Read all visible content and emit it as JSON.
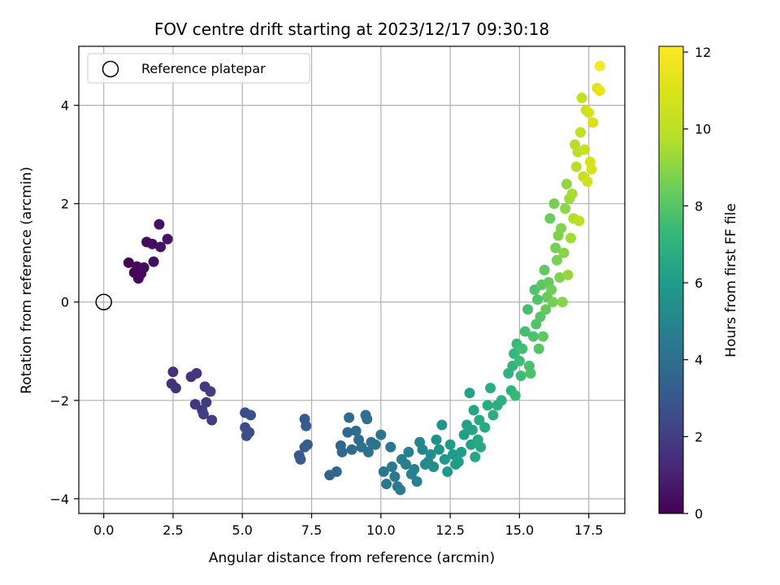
{
  "chart_data": {
    "type": "scatter",
    "title": "FOV centre drift starting at 2023/12/17 09:30:18",
    "xlabel": "Angular distance from reference (arcmin)",
    "ylabel": "Rotation from reference (arcmin)",
    "xlim": [
      -0.9,
      18.8
    ],
    "ylim": [
      -4.3,
      5.2
    ],
    "xticks": [
      0.0,
      2.5,
      5.0,
      7.5,
      10.0,
      12.5,
      15.0,
      17.5
    ],
    "xtick_labels": [
      "0.0",
      "2.5",
      "5.0",
      "7.5",
      "10.0",
      "12.5",
      "15.0",
      "17.5"
    ],
    "yticks": [
      -4,
      -2,
      0,
      2,
      4
    ],
    "ytick_labels": [
      "−4",
      "−2",
      "0",
      "2",
      "4"
    ],
    "grid": true,
    "colormap": "viridis",
    "colorbar": {
      "label": "Hours from first FF file",
      "range": [
        0,
        12.15
      ],
      "ticks": [
        0,
        2,
        4,
        6,
        8,
        10,
        12
      ],
      "tick_labels": [
        "0",
        "2",
        "4",
        "6",
        "8",
        "10",
        "12"
      ]
    },
    "legend": {
      "position": "top-left",
      "entries": [
        "Reference platepar"
      ]
    },
    "reference_point": {
      "x": 0.0,
      "y": 0.0
    },
    "points": [
      {
        "x": 0.9,
        "y": 0.8,
        "h": 0.05
      },
      {
        "x": 1.1,
        "y": 0.6,
        "h": 0.1
      },
      {
        "x": 1.2,
        "y": 0.72,
        "h": 0.15
      },
      {
        "x": 1.25,
        "y": 0.48,
        "h": 0.2
      },
      {
        "x": 1.35,
        "y": 0.58,
        "h": 0.25
      },
      {
        "x": 1.45,
        "y": 0.7,
        "h": 0.3
      },
      {
        "x": 1.55,
        "y": 1.22,
        "h": 0.35
      },
      {
        "x": 1.75,
        "y": 1.18,
        "h": 0.4
      },
      {
        "x": 1.8,
        "y": 0.82,
        "h": 0.45
      },
      {
        "x": 2.0,
        "y": 1.58,
        "h": 0.5
      },
      {
        "x": 2.05,
        "y": 1.12,
        "h": 0.55
      },
      {
        "x": 2.3,
        "y": 1.28,
        "h": 0.6
      },
      {
        "x": 2.5,
        "y": -1.42,
        "h": 1.5
      },
      {
        "x": 2.45,
        "y": -1.66,
        "h": 1.55
      },
      {
        "x": 2.6,
        "y": -1.75,
        "h": 1.6
      },
      {
        "x": 3.15,
        "y": -1.52,
        "h": 1.65
      },
      {
        "x": 3.35,
        "y": -1.45,
        "h": 1.7
      },
      {
        "x": 3.3,
        "y": -2.08,
        "h": 1.75
      },
      {
        "x": 3.55,
        "y": -2.2,
        "h": 1.8
      },
      {
        "x": 3.65,
        "y": -1.72,
        "h": 1.85
      },
      {
        "x": 3.7,
        "y": -2.04,
        "h": 1.9
      },
      {
        "x": 3.85,
        "y": -1.82,
        "h": 1.95
      },
      {
        "x": 3.9,
        "y": -2.4,
        "h": 2.0
      },
      {
        "x": 3.6,
        "y": -2.28,
        "h": 2.05
      },
      {
        "x": 5.1,
        "y": -2.25,
        "h": 2.5
      },
      {
        "x": 5.1,
        "y": -2.55,
        "h": 2.55
      },
      {
        "x": 5.15,
        "y": -2.72,
        "h": 2.6
      },
      {
        "x": 5.25,
        "y": -2.65,
        "h": 2.65
      },
      {
        "x": 5.3,
        "y": -2.3,
        "h": 2.7
      },
      {
        "x": 7.05,
        "y": -3.12,
        "h": 3.0
      },
      {
        "x": 7.1,
        "y": -3.2,
        "h": 3.05
      },
      {
        "x": 7.25,
        "y": -2.38,
        "h": 3.1
      },
      {
        "x": 7.3,
        "y": -2.52,
        "h": 3.15
      },
      {
        "x": 7.35,
        "y": -2.9,
        "h": 3.2
      },
      {
        "x": 7.25,
        "y": -2.95,
        "h": 3.25
      },
      {
        "x": 8.15,
        "y": -3.52,
        "h": 3.5
      },
      {
        "x": 8.4,
        "y": -3.45,
        "h": 3.55
      },
      {
        "x": 8.55,
        "y": -2.92,
        "h": 3.6
      },
      {
        "x": 8.6,
        "y": -3.05,
        "h": 3.65
      },
      {
        "x": 8.8,
        "y": -2.65,
        "h": 3.7
      },
      {
        "x": 8.85,
        "y": -2.35,
        "h": 3.75
      },
      {
        "x": 8.95,
        "y": -3.0,
        "h": 3.8
      },
      {
        "x": 9.1,
        "y": -2.62,
        "h": 3.85
      },
      {
        "x": 9.2,
        "y": -2.8,
        "h": 3.9
      },
      {
        "x": 9.3,
        "y": -2.95,
        "h": 3.95
      },
      {
        "x": 9.45,
        "y": -2.3,
        "h": 4.0
      },
      {
        "x": 9.5,
        "y": -2.38,
        "h": 4.05
      },
      {
        "x": 9.55,
        "y": -3.05,
        "h": 4.1
      },
      {
        "x": 9.65,
        "y": -2.85,
        "h": 4.15
      },
      {
        "x": 9.8,
        "y": -2.9,
        "h": 4.2
      },
      {
        "x": 10.0,
        "y": -2.7,
        "h": 4.25
      },
      {
        "x": 10.1,
        "y": -3.45,
        "h": 4.3
      },
      {
        "x": 10.2,
        "y": -3.7,
        "h": 4.35
      },
      {
        "x": 10.35,
        "y": -2.95,
        "h": 4.4
      },
      {
        "x": 10.4,
        "y": -3.35,
        "h": 4.45
      },
      {
        "x": 10.5,
        "y": -3.55,
        "h": 4.5
      },
      {
        "x": 10.6,
        "y": -3.75,
        "h": 4.55
      },
      {
        "x": 10.7,
        "y": -3.82,
        "h": 4.6
      },
      {
        "x": 10.75,
        "y": -3.2,
        "h": 4.65
      },
      {
        "x": 10.9,
        "y": -3.3,
        "h": 4.7
      },
      {
        "x": 11.0,
        "y": -3.05,
        "h": 4.75
      },
      {
        "x": 11.1,
        "y": -3.5,
        "h": 4.8
      },
      {
        "x": 11.2,
        "y": -3.4,
        "h": 4.85
      },
      {
        "x": 11.3,
        "y": -3.65,
        "h": 4.9
      },
      {
        "x": 11.4,
        "y": -2.85,
        "h": 4.95
      },
      {
        "x": 11.5,
        "y": -3.0,
        "h": 5.0
      },
      {
        "x": 11.6,
        "y": -3.3,
        "h": 5.1
      },
      {
        "x": 11.7,
        "y": -3.25,
        "h": 5.2
      },
      {
        "x": 11.8,
        "y": -3.1,
        "h": 5.3
      },
      {
        "x": 11.9,
        "y": -3.35,
        "h": 5.4
      },
      {
        "x": 12.0,
        "y": -2.8,
        "h": 5.5
      },
      {
        "x": 12.1,
        "y": -3.0,
        "h": 5.6
      },
      {
        "x": 12.2,
        "y": -2.5,
        "h": 5.7
      },
      {
        "x": 12.3,
        "y": -3.2,
        "h": 5.8
      },
      {
        "x": 12.4,
        "y": -3.45,
        "h": 5.85
      },
      {
        "x": 12.5,
        "y": -2.9,
        "h": 5.9
      },
      {
        "x": 12.6,
        "y": -3.1,
        "h": 5.95
      },
      {
        "x": 12.7,
        "y": -3.3,
        "h": 6.0
      },
      {
        "x": 12.8,
        "y": -3.25,
        "h": 6.05
      },
      {
        "x": 12.9,
        "y": -3.05,
        "h": 6.1
      },
      {
        "x": 13.0,
        "y": -2.7,
        "h": 6.15
      },
      {
        "x": 13.1,
        "y": -2.5,
        "h": 6.2
      },
      {
        "x": 13.2,
        "y": -1.85,
        "h": 6.25
      },
      {
        "x": 13.25,
        "y": -2.9,
        "h": 6.3
      },
      {
        "x": 13.3,
        "y": -2.6,
        "h": 6.35
      },
      {
        "x": 13.35,
        "y": -2.2,
        "h": 6.4
      },
      {
        "x": 13.4,
        "y": -3.15,
        "h": 6.45
      },
      {
        "x": 13.5,
        "y": -2.8,
        "h": 6.5
      },
      {
        "x": 13.55,
        "y": -2.4,
        "h": 6.55
      },
      {
        "x": 13.6,
        "y": -2.95,
        "h": 6.6
      },
      {
        "x": 13.75,
        "y": -2.55,
        "h": 6.65
      },
      {
        "x": 13.85,
        "y": -2.1,
        "h": 6.7
      },
      {
        "x": 13.95,
        "y": -1.75,
        "h": 6.75
      },
      {
        "x": 14.05,
        "y": -2.3,
        "h": 6.8
      },
      {
        "x": 14.2,
        "y": -2.1,
        "h": 6.85
      },
      {
        "x": 14.35,
        "y": -2.0,
        "h": 6.9
      },
      {
        "x": 14.6,
        "y": -1.45,
        "h": 7.0
      },
      {
        "x": 14.7,
        "y": -1.8,
        "h": 7.1
      },
      {
        "x": 14.75,
        "y": -1.3,
        "h": 7.2
      },
      {
        "x": 14.8,
        "y": -1.05,
        "h": 7.3
      },
      {
        "x": 14.85,
        "y": -1.9,
        "h": 7.35
      },
      {
        "x": 14.9,
        "y": -0.85,
        "h": 7.4
      },
      {
        "x": 15.0,
        "y": -1.2,
        "h": 7.45
      },
      {
        "x": 15.05,
        "y": -1.5,
        "h": 7.5
      },
      {
        "x": 15.1,
        "y": -0.95,
        "h": 7.55
      },
      {
        "x": 15.2,
        "y": -0.6,
        "h": 7.6
      },
      {
        "x": 15.3,
        "y": -0.15,
        "h": 7.65
      },
      {
        "x": 15.35,
        "y": -1.3,
        "h": 7.7
      },
      {
        "x": 15.4,
        "y": -1.45,
        "h": 7.75
      },
      {
        "x": 15.5,
        "y": -0.7,
        "h": 7.8
      },
      {
        "x": 15.55,
        "y": 0.25,
        "h": 7.85
      },
      {
        "x": 15.6,
        "y": -0.45,
        "h": 7.9
      },
      {
        "x": 15.65,
        "y": 0.05,
        "h": 7.95
      },
      {
        "x": 15.7,
        "y": -0.95,
        "h": 8.0
      },
      {
        "x": 15.75,
        "y": -0.3,
        "h": 8.05
      },
      {
        "x": 15.8,
        "y": 0.35,
        "h": 8.1
      },
      {
        "x": 15.85,
        "y": -0.7,
        "h": 8.15
      },
      {
        "x": 15.9,
        "y": 0.65,
        "h": 8.2
      },
      {
        "x": 15.95,
        "y": -0.15,
        "h": 8.25
      },
      {
        "x": 16.0,
        "y": 0.1,
        "h": 8.3
      },
      {
        "x": 16.05,
        "y": 0.4,
        "h": 8.35
      },
      {
        "x": 16.1,
        "y": 1.7,
        "h": 8.4
      },
      {
        "x": 16.15,
        "y": 0.25,
        "h": 8.5
      },
      {
        "x": 16.2,
        "y": 0.0,
        "h": 8.55
      },
      {
        "x": 16.25,
        "y": 2.0,
        "h": 8.6
      },
      {
        "x": 16.3,
        "y": 1.1,
        "h": 8.65
      },
      {
        "x": 16.35,
        "y": 0.85,
        "h": 8.7
      },
      {
        "x": 16.4,
        "y": 1.35,
        "h": 8.75
      },
      {
        "x": 16.45,
        "y": 0.5,
        "h": 8.8
      },
      {
        "x": 16.5,
        "y": 1.5,
        "h": 8.85
      },
      {
        "x": 16.55,
        "y": 0.0,
        "h": 8.9
      },
      {
        "x": 16.6,
        "y": 1.0,
        "h": 8.95
      },
      {
        "x": 16.65,
        "y": 1.9,
        "h": 9.0
      },
      {
        "x": 16.7,
        "y": 2.4,
        "h": 9.1
      },
      {
        "x": 16.75,
        "y": 0.55,
        "h": 9.2
      },
      {
        "x": 16.8,
        "y": 2.1,
        "h": 9.3
      },
      {
        "x": 16.85,
        "y": 1.3,
        "h": 9.4
      },
      {
        "x": 16.9,
        "y": 2.2,
        "h": 9.5
      },
      {
        "x": 16.95,
        "y": 1.7,
        "h": 9.6
      },
      {
        "x": 17.0,
        "y": 3.2,
        "h": 9.7
      },
      {
        "x": 17.05,
        "y": 2.75,
        "h": 9.8
      },
      {
        "x": 17.1,
        "y": 3.05,
        "h": 9.9
      },
      {
        "x": 17.15,
        "y": 1.65,
        "h": 10.0
      },
      {
        "x": 17.2,
        "y": 3.45,
        "h": 10.1
      },
      {
        "x": 17.25,
        "y": 4.15,
        "h": 10.2
      },
      {
        "x": 17.3,
        "y": 2.55,
        "h": 10.3
      },
      {
        "x": 17.35,
        "y": 3.1,
        "h": 10.4
      },
      {
        "x": 17.4,
        "y": 3.9,
        "h": 10.5
      },
      {
        "x": 17.45,
        "y": 2.45,
        "h": 10.6
      },
      {
        "x": 17.5,
        "y": 3.85,
        "h": 10.7
      },
      {
        "x": 17.55,
        "y": 2.85,
        "h": 10.8
      },
      {
        "x": 17.6,
        "y": 2.7,
        "h": 10.9
      },
      {
        "x": 17.65,
        "y": 3.65,
        "h": 11.0
      },
      {
        "x": 17.8,
        "y": 4.35,
        "h": 11.2
      },
      {
        "x": 17.9,
        "y": 4.3,
        "h": 11.5
      },
      {
        "x": 17.9,
        "y": 4.8,
        "h": 12.0
      }
    ]
  }
}
